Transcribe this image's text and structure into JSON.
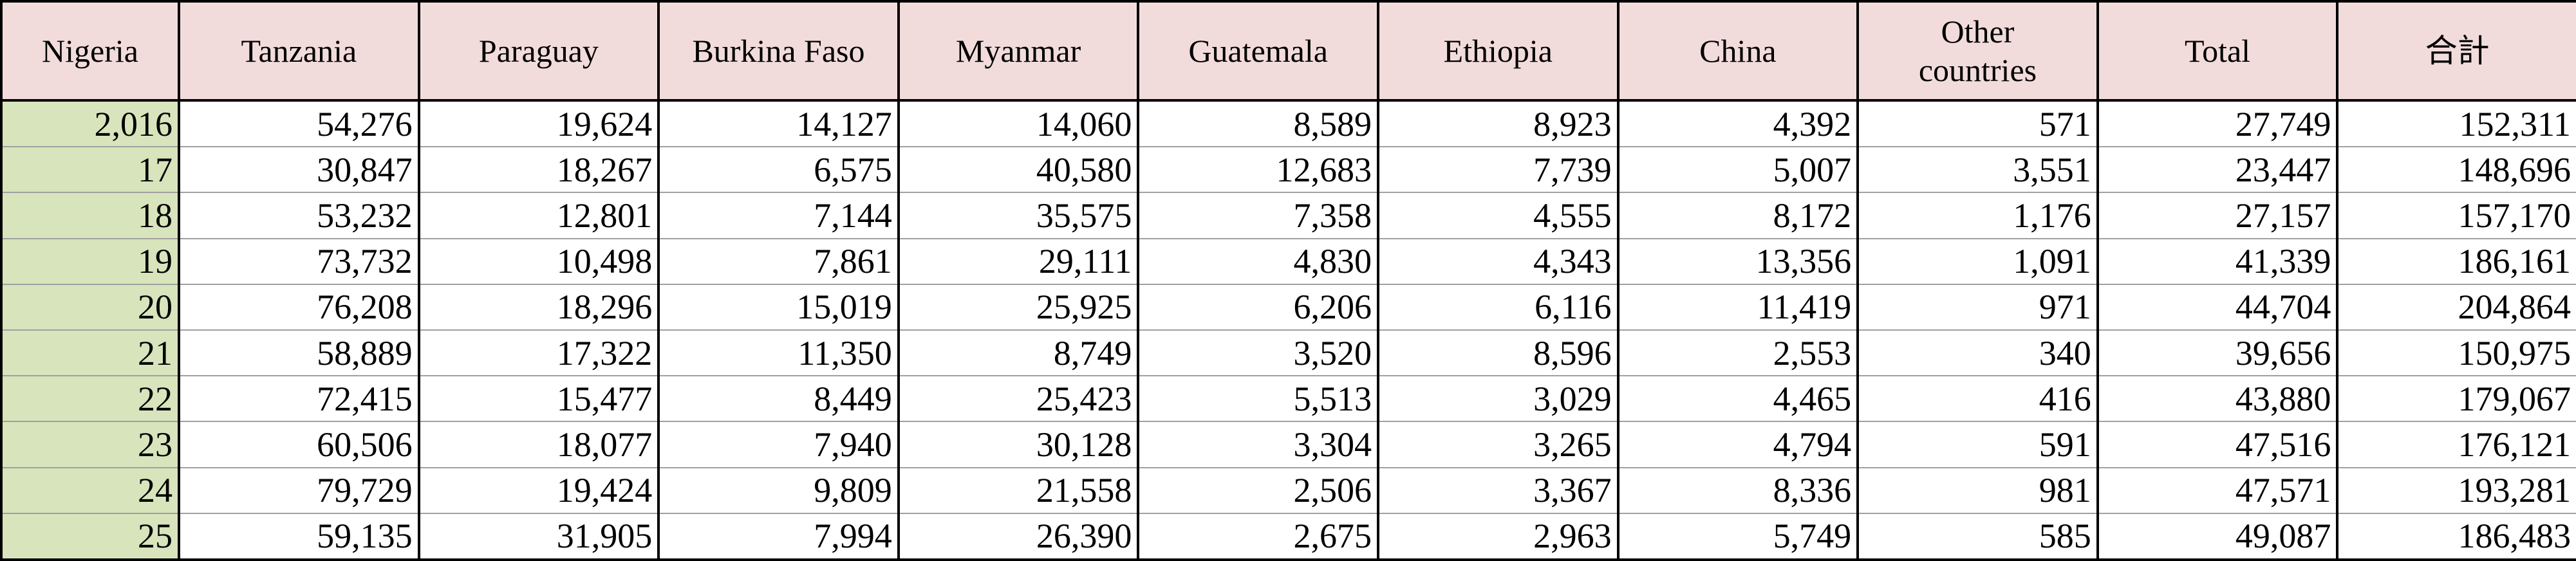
{
  "table": {
    "header": [
      "Nigeria",
      "Tanzania",
      "Paraguay",
      "Burkina Faso",
      "Myanmar",
      "Guatemala",
      "Ethiopia",
      "China",
      "Other countries",
      "Total",
      "合計"
    ],
    "rows": [
      [
        "2,016",
        "54,276",
        "19,624",
        "14,127",
        "14,060",
        "8,589",
        "8,923",
        "4,392",
        "571",
        "27,749",
        "152,311"
      ],
      [
        "17",
        "30,847",
        "18,267",
        "6,575",
        "40,580",
        "12,683",
        "7,739",
        "5,007",
        "3,551",
        "23,447",
        "148,696"
      ],
      [
        "18",
        "53,232",
        "12,801",
        "7,144",
        "35,575",
        "7,358",
        "4,555",
        "8,172",
        "1,176",
        "27,157",
        "157,170"
      ],
      [
        "19",
        "73,732",
        "10,498",
        "7,861",
        "29,111",
        "4,830",
        "4,343",
        "13,356",
        "1,091",
        "41,339",
        "186,161"
      ],
      [
        "20",
        "76,208",
        "18,296",
        "15,019",
        "25,925",
        "6,206",
        "6,116",
        "11,419",
        "971",
        "44,704",
        "204,864"
      ],
      [
        "21",
        "58,889",
        "17,322",
        "11,350",
        "8,749",
        "3,520",
        "8,596",
        "2,553",
        "340",
        "39,656",
        "150,975"
      ],
      [
        "22",
        "72,415",
        "15,477",
        "8,449",
        "25,423",
        "5,513",
        "3,029",
        "4,465",
        "416",
        "43,880",
        "179,067"
      ],
      [
        "23",
        "60,506",
        "18,077",
        "7,940",
        "30,128",
        "3,304",
        "3,265",
        "4,794",
        "591",
        "47,516",
        "176,121"
      ],
      [
        "24",
        "79,729",
        "19,424",
        "9,809",
        "21,558",
        "2,506",
        "3,367",
        "8,336",
        "981",
        "47,571",
        "193,281"
      ],
      [
        "25",
        "59,135",
        "31,905",
        "7,994",
        "26,390",
        "2,675",
        "2,963",
        "5,749",
        "585",
        "49,087",
        "186,483"
      ]
    ]
  }
}
